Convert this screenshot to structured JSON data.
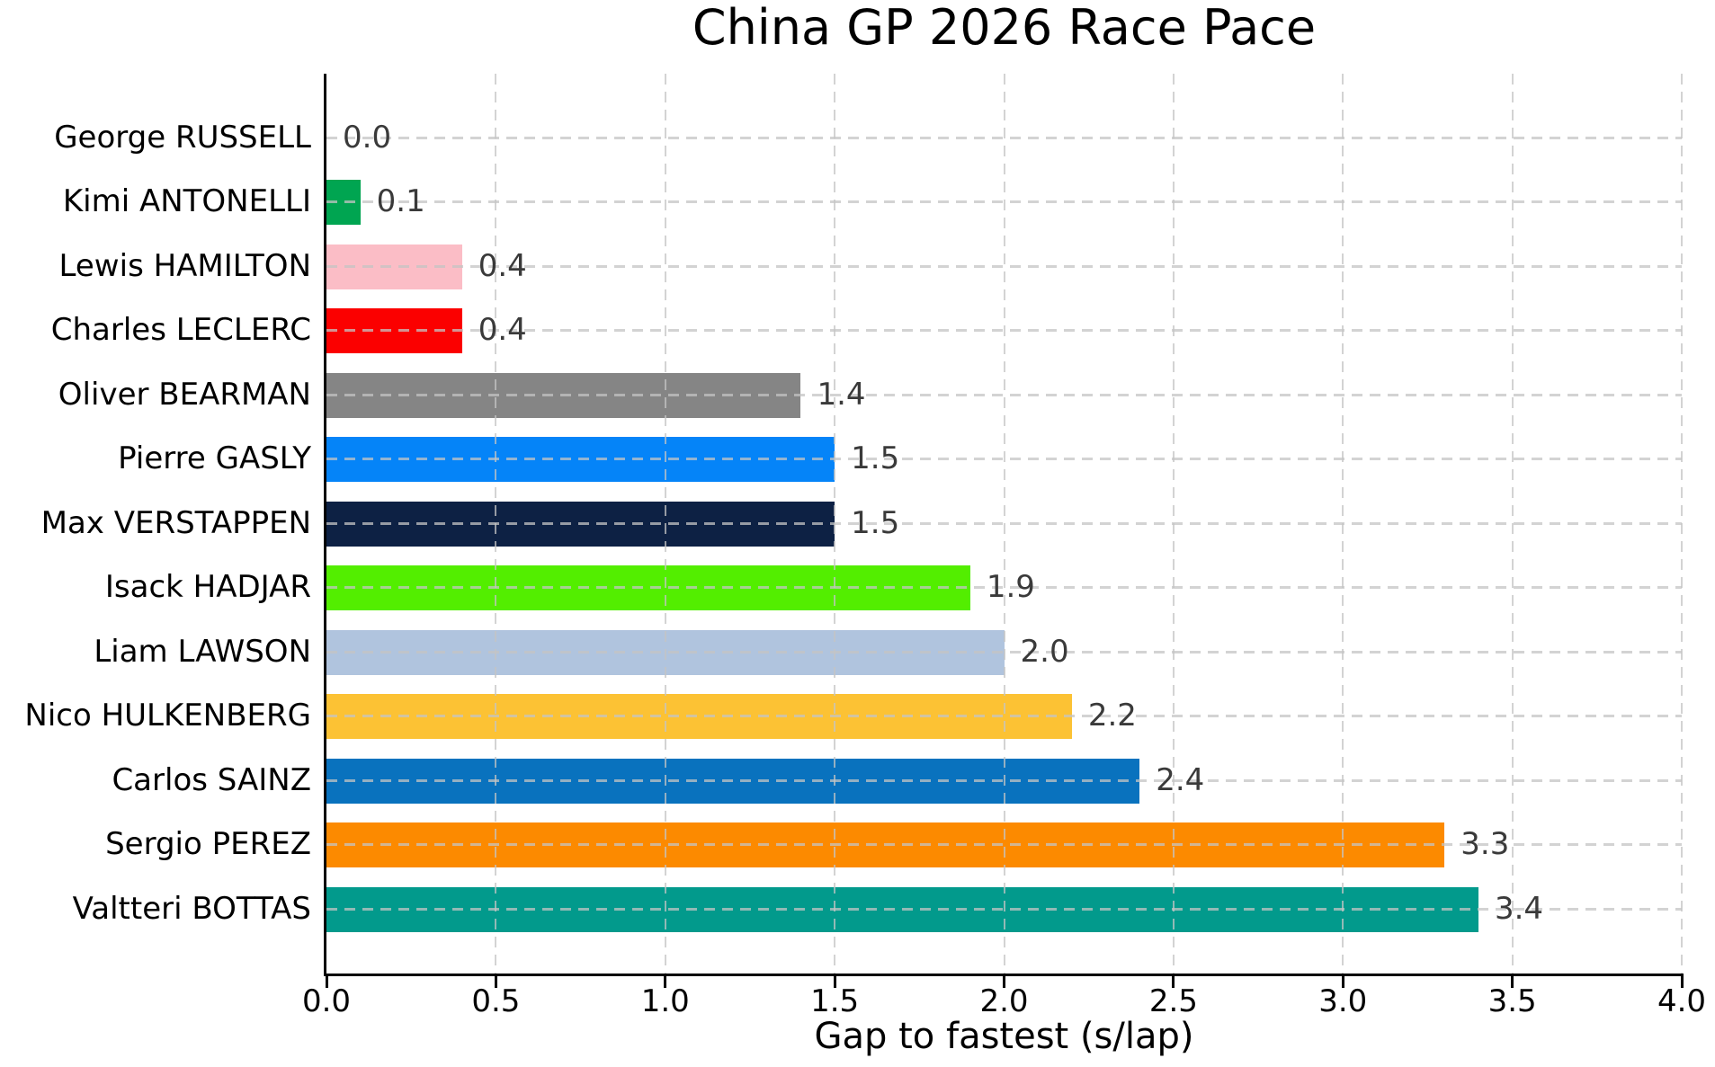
{
  "chart_data": {
    "type": "bar",
    "orientation": "horizontal",
    "title": "China GP 2026 Race Pace",
    "xlabel": "Gap to fastest (s/lap)",
    "xlim": [
      0,
      4
    ],
    "xtick_step": 0.5,
    "xtick_labels": [
      "0.0",
      "0.5",
      "1.0",
      "1.5",
      "2.0",
      "2.5",
      "3.0",
      "3.5",
      "4.0"
    ],
    "grid": "dashed gridlines on both axes, drawn above bars",
    "legend": "none",
    "categories": [
      "George RUSSELL",
      "Kimi ANTONELLI",
      "Lewis HAMILTON",
      "Charles LECLERC",
      "Oliver BEARMAN",
      "Pierre GASLY",
      "Max VERSTAPPEN",
      "Isack HADJAR",
      "Liam LAWSON",
      "Nico HULKENBERG",
      "Carlos SAINZ",
      "Sergio PEREZ",
      "Valtteri BOTTAS"
    ],
    "values": [
      0.0,
      0.1,
      0.4,
      0.4,
      1.4,
      1.5,
      1.5,
      1.9,
      2.0,
      2.2,
      2.4,
      3.3,
      3.4
    ],
    "value_labels": [
      "0.0",
      "0.1",
      "0.4",
      "0.4",
      "1.4",
      "1.5",
      "1.5",
      "1.9",
      "2.0",
      "2.2",
      "2.4",
      "3.3",
      "3.4"
    ],
    "bar_colors": [
      "none",
      "#00A551",
      "#FBBDC6",
      "#FB0000",
      "#858585",
      "#0584F8",
      "#0D2144",
      "#53EE00",
      "#B0C4DE",
      "#FCC234",
      "#0972BE",
      "#FC8A00",
      "#029A8C"
    ],
    "value_label_color": "#3a3a3a",
    "axis_color": "#000000"
  }
}
